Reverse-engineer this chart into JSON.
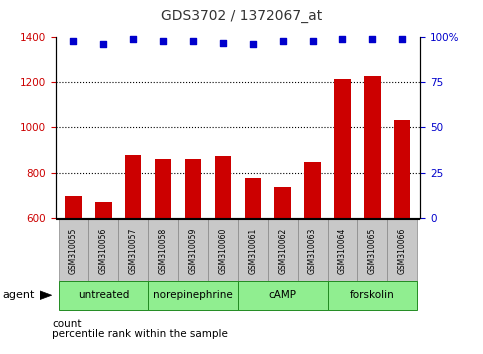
{
  "title": "GDS3702 / 1372067_at",
  "samples": [
    "GSM310055",
    "GSM310056",
    "GSM310057",
    "GSM310058",
    "GSM310059",
    "GSM310060",
    "GSM310061",
    "GSM310062",
    "GSM310063",
    "GSM310064",
    "GSM310065",
    "GSM310066"
  ],
  "counts": [
    695,
    670,
    880,
    862,
    862,
    875,
    775,
    737,
    845,
    1215,
    1230,
    1035
  ],
  "percentiles": [
    98,
    96,
    99,
    98,
    98,
    97,
    96,
    98,
    98,
    99,
    99,
    99
  ],
  "ylim_left": [
    600,
    1400
  ],
  "ylim_right": [
    0,
    100
  ],
  "yticks_left": [
    600,
    800,
    1000,
    1200,
    1400
  ],
  "yticks_right": [
    0,
    25,
    50,
    75,
    100
  ],
  "bar_color": "#cc0000",
  "dot_color": "#0000cc",
  "groups": [
    {
      "label": "untreated",
      "start": 0,
      "end": 3
    },
    {
      "label": "norepinephrine",
      "start": 3,
      "end": 6
    },
    {
      "label": "cAMP",
      "start": 6,
      "end": 9
    },
    {
      "label": "forskolin",
      "start": 9,
      "end": 12
    }
  ],
  "group_color": "#90ee90",
  "group_edge_color": "#228B22",
  "xlabel_agent": "agent",
  "legend_count_label": "count",
  "legend_pct_label": "percentile rank within the sample",
  "left_axis_color": "#cc0000",
  "right_axis_color": "#0000cc",
  "sample_label_bg": "#c8c8c8",
  "sample_label_edge": "#888888",
  "bar_width": 0.55
}
